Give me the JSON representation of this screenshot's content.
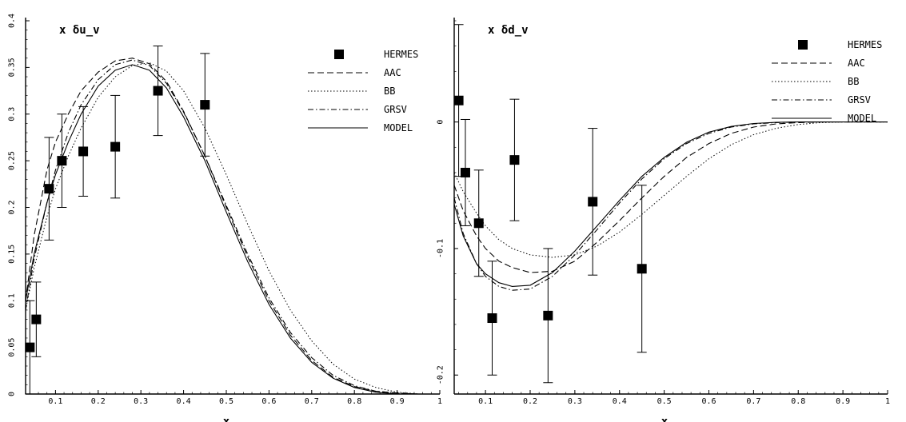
{
  "chart_data": [
    {
      "type": "line",
      "title": "x δu_v",
      "xlabel": "x",
      "ylabel": "",
      "xlim": [
        0.03,
        1.0
      ],
      "ylim": [
        0.0,
        0.4
      ],
      "xticks": [
        "0.1",
        "0.2",
        "0.3",
        "0.4",
        "0.5",
        "0.6",
        "0.7",
        "0.8",
        "0.9",
        "1"
      ],
      "yticks": [
        "0",
        "0.05",
        "0.1",
        "0.15",
        "0.2",
        "0.25",
        "0.3",
        "0.35",
        "0.4"
      ],
      "grid": false,
      "legend_position": "top-right",
      "series": [
        {
          "name": "AAC",
          "style": "dashed",
          "x": [
            0.03,
            0.05,
            0.08,
            0.1,
            0.13,
            0.16,
            0.2,
            0.24,
            0.28,
            0.32,
            0.36,
            0.4,
            0.45,
            0.5,
            0.55,
            0.6,
            0.65,
            0.7,
            0.75,
            0.8,
            0.85,
            0.9,
            0.95,
            1.0
          ],
          "y": [
            0.1,
            0.17,
            0.24,
            0.27,
            0.3,
            0.325,
            0.345,
            0.357,
            0.36,
            0.354,
            0.335,
            0.303,
            0.255,
            0.2,
            0.147,
            0.1,
            0.063,
            0.036,
            0.018,
            0.008,
            0.003,
            0.001,
            0.0,
            0.0
          ]
        },
        {
          "name": "BB",
          "style": "dotted",
          "x": [
            0.03,
            0.05,
            0.08,
            0.1,
            0.13,
            0.16,
            0.2,
            0.24,
            0.28,
            0.32,
            0.36,
            0.4,
            0.45,
            0.5,
            0.55,
            0.6,
            0.65,
            0.7,
            0.75,
            0.8,
            0.85,
            0.9,
            0.95,
            1.0
          ],
          "y": [
            0.09,
            0.135,
            0.19,
            0.22,
            0.255,
            0.285,
            0.318,
            0.34,
            0.352,
            0.355,
            0.346,
            0.325,
            0.285,
            0.235,
            0.182,
            0.132,
            0.09,
            0.057,
            0.032,
            0.016,
            0.007,
            0.002,
            0.0,
            0.0
          ]
        },
        {
          "name": "GRSV",
          "style": "dashdot",
          "x": [
            0.03,
            0.05,
            0.08,
            0.1,
            0.13,
            0.16,
            0.2,
            0.24,
            0.28,
            0.32,
            0.36,
            0.4,
            0.45,
            0.5,
            0.55,
            0.6,
            0.65,
            0.7,
            0.75,
            0.8,
            0.85,
            0.9,
            0.95,
            1.0
          ],
          "y": [
            0.09,
            0.145,
            0.205,
            0.24,
            0.28,
            0.31,
            0.337,
            0.353,
            0.358,
            0.352,
            0.333,
            0.302,
            0.255,
            0.202,
            0.15,
            0.103,
            0.066,
            0.039,
            0.02,
            0.009,
            0.003,
            0.001,
            0.0,
            0.0
          ]
        },
        {
          "name": "MODEL",
          "style": "solid",
          "x": [
            0.03,
            0.05,
            0.08,
            0.1,
            0.13,
            0.16,
            0.2,
            0.24,
            0.28,
            0.32,
            0.36,
            0.4,
            0.45,
            0.5,
            0.55,
            0.6,
            0.65,
            0.7,
            0.75,
            0.8,
            0.85,
            0.9,
            0.95,
            1.0
          ],
          "y": [
            0.1,
            0.15,
            0.205,
            0.235,
            0.27,
            0.3,
            0.33,
            0.347,
            0.353,
            0.347,
            0.328,
            0.297,
            0.25,
            0.195,
            0.142,
            0.096,
            0.06,
            0.034,
            0.017,
            0.007,
            0.002,
            0.0,
            0.0,
            0.0
          ]
        }
      ],
      "points": {
        "name": "HERMES",
        "x": [
          0.04,
          0.055,
          0.085,
          0.115,
          0.165,
          0.24,
          0.34,
          0.45
        ],
        "y": [
          0.05,
          0.08,
          0.22,
          0.25,
          0.26,
          0.265,
          0.325,
          0.31
        ],
        "err": [
          0.05,
          0.04,
          0.055,
          0.05,
          0.048,
          0.055,
          0.048,
          0.055
        ]
      }
    },
    {
      "type": "line",
      "title": "x δd_v",
      "xlabel": "x",
      "ylabel": "",
      "xlim": [
        0.03,
        1.0
      ],
      "ylim": [
        -0.215,
        0.08
      ],
      "xticks": [
        "0.1",
        "0.2",
        "0.3",
        "0.4",
        "0.5",
        "0.6",
        "0.7",
        "0.8",
        "0.9",
        "1"
      ],
      "yticks": [
        "-0.2",
        "-0.1",
        "0"
      ],
      "grid": false,
      "legend_position": "top-right",
      "series": [
        {
          "name": "AAC",
          "style": "dashed",
          "x": [
            0.03,
            0.05,
            0.08,
            0.1,
            0.13,
            0.16,
            0.2,
            0.25,
            0.3,
            0.35,
            0.4,
            0.45,
            0.5,
            0.55,
            0.6,
            0.65,
            0.7,
            0.75,
            0.8,
            0.85,
            0.9,
            0.95,
            1.0
          ],
          "y": [
            -0.05,
            -0.07,
            -0.09,
            -0.1,
            -0.11,
            -0.115,
            -0.119,
            -0.118,
            -0.11,
            -0.095,
            -0.078,
            -0.06,
            -0.043,
            -0.028,
            -0.017,
            -0.009,
            -0.004,
            -0.0015,
            -0.0005,
            0.0,
            0.0,
            0.0,
            0.0
          ]
        },
        {
          "name": "BB",
          "style": "dotted",
          "x": [
            0.03,
            0.05,
            0.08,
            0.1,
            0.13,
            0.16,
            0.2,
            0.25,
            0.3,
            0.35,
            0.4,
            0.45,
            0.5,
            0.55,
            0.6,
            0.65,
            0.7,
            0.75,
            0.8,
            0.85,
            0.9,
            0.95,
            1.0
          ],
          "y": [
            -0.04,
            -0.055,
            -0.072,
            -0.082,
            -0.093,
            -0.1,
            -0.105,
            -0.107,
            -0.105,
            -0.098,
            -0.087,
            -0.073,
            -0.058,
            -0.043,
            -0.029,
            -0.018,
            -0.01,
            -0.005,
            -0.002,
            -0.0005,
            0.0,
            0.0,
            0.0
          ]
        },
        {
          "name": "GRSV",
          "style": "dashdot",
          "x": [
            0.03,
            0.05,
            0.08,
            0.1,
            0.13,
            0.16,
            0.2,
            0.25,
            0.3,
            0.35,
            0.4,
            0.45,
            0.5,
            0.55,
            0.6,
            0.65,
            0.7,
            0.75,
            0.8,
            0.85,
            0.9,
            0.95,
            1.0
          ],
          "y": [
            -0.06,
            -0.088,
            -0.112,
            -0.122,
            -0.13,
            -0.133,
            -0.132,
            -0.122,
            -0.105,
            -0.085,
            -0.064,
            -0.045,
            -0.029,
            -0.017,
            -0.009,
            -0.004,
            -0.0015,
            -0.0005,
            0.0,
            0.0,
            0.0,
            0.0,
            0.0
          ]
        },
        {
          "name": "MODEL",
          "style": "solid",
          "x": [
            0.03,
            0.05,
            0.08,
            0.1,
            0.13,
            0.16,
            0.2,
            0.25,
            0.3,
            0.35,
            0.4,
            0.45,
            0.5,
            0.55,
            0.6,
            0.65,
            0.7,
            0.75,
            0.8,
            0.85,
            0.9,
            0.95,
            1.0
          ],
          "y": [
            -0.065,
            -0.09,
            -0.112,
            -0.12,
            -0.127,
            -0.13,
            -0.129,
            -0.119,
            -0.102,
            -0.082,
            -0.062,
            -0.043,
            -0.028,
            -0.016,
            -0.008,
            -0.0035,
            -0.0012,
            -0.0003,
            0.0,
            0.0,
            0.0,
            0.0,
            0.0
          ]
        }
      ],
      "points": {
        "name": "HERMES",
        "x": [
          0.04,
          0.055,
          0.085,
          0.115,
          0.165,
          0.24,
          0.34,
          0.45
        ],
        "y": [
          0.017,
          -0.04,
          -0.08,
          -0.155,
          -0.03,
          -0.153,
          -0.063,
          -0.116
        ],
        "err": [
          0.06,
          0.042,
          0.042,
          0.045,
          0.048,
          0.053,
          0.058,
          0.066
        ]
      }
    }
  ]
}
